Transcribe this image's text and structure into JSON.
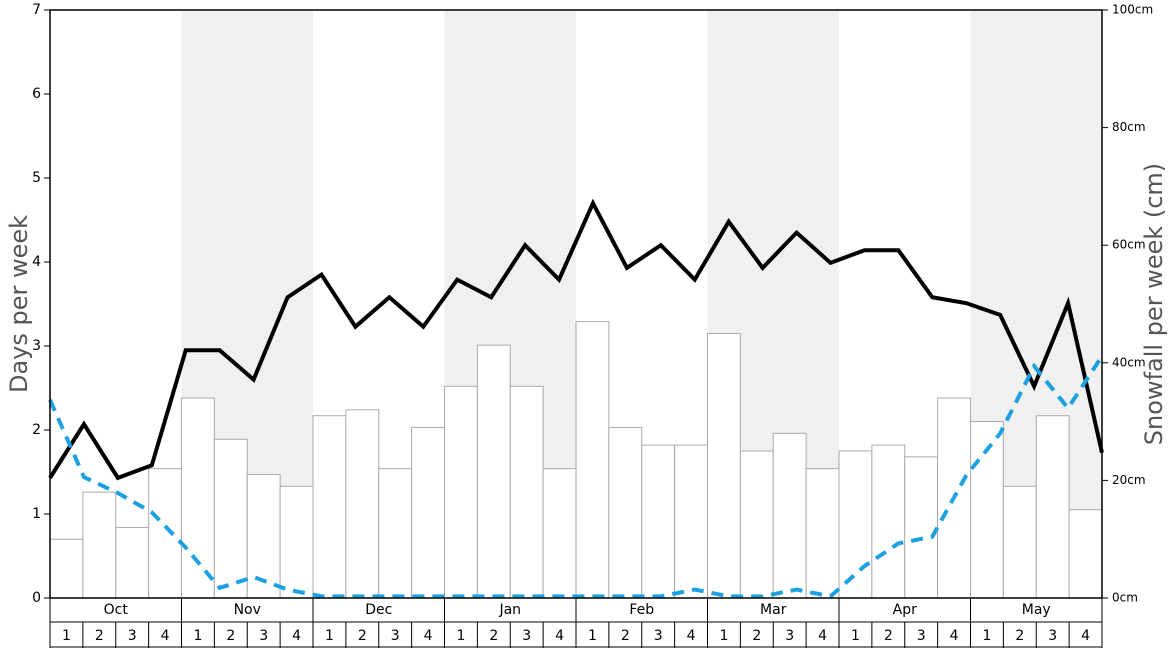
{
  "chart_data": {
    "type": "bar",
    "ylabel": "Days per week",
    "y2label": "Snowfall per week (cm)",
    "months": [
      "Oct",
      "Nov",
      "Dec",
      "Jan",
      "Feb",
      "Mar",
      "Apr",
      "May"
    ],
    "categories": [
      "1",
      "2",
      "3",
      "4",
      "1",
      "2",
      "3",
      "4",
      "1",
      "2",
      "3",
      "4",
      "1",
      "2",
      "3",
      "4",
      "1",
      "2",
      "3",
      "4",
      "1",
      "2",
      "3",
      "4",
      "1",
      "2",
      "3",
      "4",
      "1",
      "2",
      "3",
      "4"
    ],
    "ylim": [
      0,
      7
    ],
    "yticks": [
      0,
      1,
      2,
      3,
      4,
      5,
      6,
      7
    ],
    "y2lim": [
      0,
      100
    ],
    "y2ticks": [
      {
        "value": 0,
        "label": "0cm"
      },
      {
        "value": 20,
        "label": "20cm"
      },
      {
        "value": 40,
        "label": "40cm"
      },
      {
        "value": 60,
        "label": "60cm"
      },
      {
        "value": 80,
        "label": "80cm"
      },
      {
        "value": 100,
        "label": "100cm"
      }
    ],
    "shade_color": "#f0f0f0",
    "series": [
      {
        "type": "bar",
        "axis": "y2",
        "color": "#ffffff",
        "edge_color": "#aaaaaa",
        "values": [
          10,
          18,
          12,
          22,
          34,
          27,
          21,
          19,
          31,
          32,
          22,
          29,
          36,
          43,
          36,
          22,
          47,
          29,
          26,
          26,
          45,
          25,
          28,
          22,
          25,
          26,
          24,
          34,
          30,
          19,
          31,
          15
        ]
      },
      {
        "type": "line",
        "axis": "y",
        "color": "#000000",
        "dashed": false,
        "values": [
          1.43,
          2.07,
          1.43,
          1.58,
          2.95,
          2.95,
          2.6,
          3.58,
          3.85,
          3.23,
          3.58,
          3.23,
          3.79,
          3.58,
          4.2,
          3.79,
          4.7,
          3.93,
          4.2,
          3.79,
          4.48,
          3.93,
          4.35,
          3.99,
          4.14,
          4.14,
          3.58,
          3.51,
          3.37,
          2.52,
          3.51,
          1.73
        ]
      },
      {
        "type": "line",
        "axis": "y",
        "color": "#1ba1e2",
        "dashed": true,
        "values": [
          2.36,
          1.44,
          1.25,
          1.02,
          0.6,
          0.12,
          0.25,
          0.1,
          0.02,
          0.02,
          0.02,
          0.02,
          0.02,
          0.02,
          0.02,
          0.02,
          0.02,
          0.02,
          0.02,
          0.1,
          0.02,
          0.02,
          0.1,
          0.02,
          0.38,
          0.65,
          0.73,
          1.46,
          1.96,
          2.76,
          2.26,
          2.88
        ]
      }
    ]
  }
}
